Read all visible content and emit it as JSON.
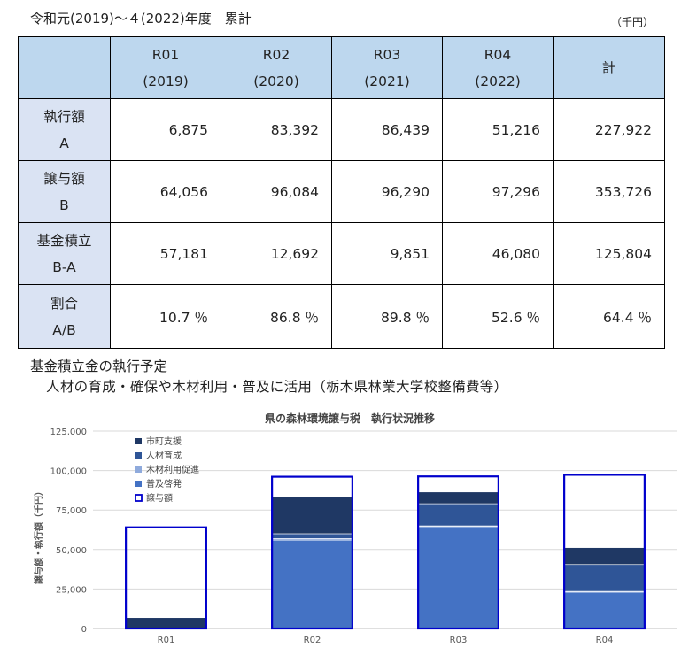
{
  "title": "令和元(2019)〜４(2022)年度　累計",
  "unit": "（千円）",
  "table": {
    "headers": [
      {
        "l1": "R01",
        "l2": "(2019)"
      },
      {
        "l1": "R02",
        "l2": "(2020)"
      },
      {
        "l1": "R03",
        "l2": "(2021)"
      },
      {
        "l1": "R04",
        "l2": "(2022)"
      },
      {
        "l1": "計",
        "l2": ""
      }
    ],
    "rows": [
      {
        "l1": "執行額",
        "l2": "A",
        "cells": [
          "6,875",
          "83,392",
          "86,439",
          "51,216",
          "227,922"
        ]
      },
      {
        "l1": "譲与額",
        "l2": "B",
        "cells": [
          "64,056",
          "96,084",
          "96,290",
          "97,296",
          "353,726"
        ]
      },
      {
        "l1": "基金積立",
        "l2": "B-A",
        "cells": [
          "57,181",
          "12,692",
          "9,851",
          "46,080",
          "125,804"
        ]
      },
      {
        "l1": "割合",
        "l2": "A/B",
        "cells": [
          "10.7 ％",
          "86.8 ％",
          "89.8 ％",
          "52.6 ％",
          "64.4 ％"
        ]
      }
    ]
  },
  "notes": {
    "line1": "基金積立金の執行予定",
    "line2": "人材の育成・確保や木材利用・普及に活用（栃木県林業大学校整備費等）"
  },
  "chart_data": {
    "type": "bar",
    "title": "県の森林環境譲与税　執行状況推移",
    "ylabel": "譲与額・執行額（千円）",
    "xlabel": "",
    "categories": [
      "R01",
      "R02",
      "R03",
      "R04"
    ],
    "ylim": [
      0,
      125000
    ],
    "yticks": [
      0,
      25000,
      50000,
      75000,
      100000,
      125000
    ],
    "ytick_labels": [
      "0",
      "25,000",
      "50,000",
      "75,000",
      "100,000",
      "125,000"
    ],
    "legend_position": "top-left",
    "stacked_series": [
      {
        "name": "普及啓発",
        "color": "#4472c4",
        "values": [
          0,
          56000,
          64500,
          23000
        ]
      },
      {
        "name": "木材利用促進",
        "color": "#8faadc",
        "values": [
          0,
          1000,
          500,
          500
        ]
      },
      {
        "name": "人材育成",
        "color": "#2f5597",
        "values": [
          200,
          3000,
          14000,
          17000
        ]
      },
      {
        "name": "市町支援",
        "color": "#1f3864",
        "values": [
          6675,
          23392,
          7439,
          10716
        ]
      }
    ],
    "outline_series": {
      "name": "譲与額",
      "color": "#0000cc",
      "values": [
        64056,
        96084,
        96290,
        97296
      ]
    },
    "legend_order": [
      "市町支援",
      "人材育成",
      "木材利用促進",
      "普及啓発",
      "譲与額"
    ]
  }
}
